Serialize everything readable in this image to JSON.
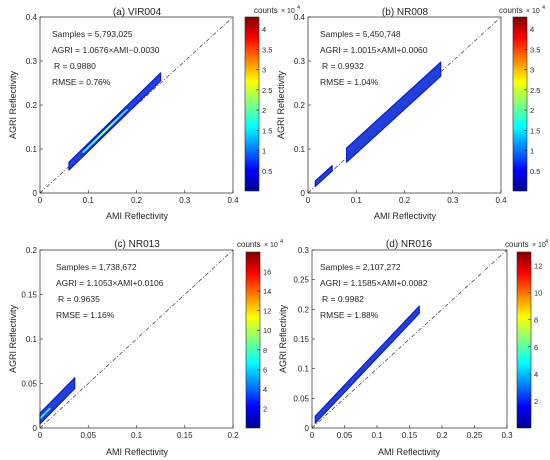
{
  "colorbar_label": "counts",
  "colorbar_exponent": "× 10",
  "colorbar_exponent_power": "4",
  "chart_data": [
    {
      "type": "heatmap",
      "title": "(a)  VIR004",
      "xlabel": "AMI Reflectivity",
      "ylabel": "AGRI Reflectivity",
      "xlim": [
        0,
        0.4
      ],
      "ylim": [
        0,
        0.4
      ],
      "xticks": [
        "0",
        "0.1",
        "0.2",
        "0.3",
        "0.4"
      ],
      "yticks": [
        "0",
        "0.1",
        "0.2",
        "0.3",
        "0.4"
      ],
      "stats": [
        "Samples = 5,793,025",
        "AGRI = 1.0676×AMI−0.0030",
        "R = 0.9880",
        "RMSE = 0.76%"
      ],
      "fit": {
        "slope": 1.0676,
        "intercept": -0.003
      },
      "colorbar": {
        "min": 0,
        "max": 4.3,
        "ticks": [
          "0.5",
          "1",
          "1.5",
          "2",
          "2.5",
          "3",
          "3.5",
          "4"
        ],
        "tick_values": [
          0.5,
          1,
          1.5,
          2,
          2.5,
          3,
          3.5,
          4
        ]
      },
      "segments": [
        {
          "x": [
            0.06,
            0.25
          ],
          "half_width": 0.009
        },
        {
          "x": [
            0.09,
            0.18
          ],
          "half_width": 0.005
        }
      ]
    },
    {
      "type": "heatmap",
      "title": "(b)  NR008",
      "xlabel": "AMI Reflectivity",
      "ylabel": "AGRI Reflectivity",
      "xlim": [
        0,
        0.4
      ],
      "ylim": [
        0,
        0.4
      ],
      "xticks": [
        "0",
        "0.1",
        "0.2",
        "0.3",
        "0.4"
      ],
      "yticks": [
        "0",
        "0.1",
        "0.2",
        "0.3",
        "0.4"
      ],
      "stats": [
        "Samples = 5,450,748",
        "AGRI = 1.0015×AMI+0.0060",
        "R = 0.9932",
        "RMSE = 1.04%"
      ],
      "fit": {
        "slope": 1.0015,
        "intercept": 0.006
      },
      "colorbar": {
        "min": 0,
        "max": 4.3,
        "ticks": [
          "0.5",
          "1",
          "1.5",
          "2",
          "2.5",
          "3",
          "3.5",
          "4"
        ],
        "tick_values": [
          0.5,
          1,
          1.5,
          2,
          2.5,
          3,
          3.5,
          4
        ]
      },
      "segments": [
        {
          "x": [
            0.015,
            0.05
          ],
          "half_width": 0.006
        },
        {
          "x": [
            0.08,
            0.275
          ],
          "half_width": 0.016
        }
      ]
    },
    {
      "type": "heatmap",
      "title": "(c)  NR013",
      "xlabel": "AMI Reflectivity",
      "ylabel": "AGRI Reflectivity",
      "xlim": [
        0,
        0.2
      ],
      "ylim": [
        0,
        0.2
      ],
      "xticks": [
        "0",
        "0.05",
        "0.1",
        "0.15",
        "0.2"
      ],
      "yticks": [
        "0",
        "0.05",
        "0.1",
        "0.15",
        "0.2"
      ],
      "stats": [
        "Samples = 1,738,672",
        "AGRI = 1.1053×AMI+0.0106",
        "R = 0.9635",
        "RMSE = 1.16%"
      ],
      "fit": {
        "slope": 1.1053,
        "intercept": 0.0106
      },
      "colorbar": {
        "min": 0,
        "max": 18,
        "ticks": [
          "2",
          "4",
          "6",
          "8",
          "10",
          "12",
          "14",
          "16"
        ],
        "tick_values": [
          2,
          4,
          6,
          8,
          10,
          12,
          14,
          16
        ]
      },
      "segments": [
        {
          "x": [
            0.0,
            0.036
          ],
          "half_width": 0.006
        }
      ]
    },
    {
      "type": "heatmap",
      "title": "(d)  NR016",
      "xlabel": "AMI Reflectivity",
      "ylabel": "AGRI Reflectivity",
      "xlim": [
        0,
        0.3
      ],
      "ylim": [
        0,
        0.3
      ],
      "xticks": [
        "0",
        "0.05",
        "0.1",
        "0.15",
        "0.2",
        "0.25",
        "0.3"
      ],
      "yticks": [
        "0",
        "0.05",
        "0.1",
        "0.15",
        "0.2",
        "0.25",
        "0.3"
      ],
      "stats": [
        "Samples = 2,107,272",
        "AGRI = 1.1585×AMI+0.0082",
        "R = 0.9982",
        "RMSE = 1.88%"
      ],
      "fit": {
        "slope": 1.1585,
        "intercept": 0.0082
      },
      "colorbar": {
        "min": 0,
        "max": 13,
        "ticks": [
          "2",
          "4",
          "6",
          "8",
          "10",
          "12"
        ],
        "tick_values": [
          2,
          4,
          6,
          8,
          10,
          12
        ]
      },
      "segments": [
        {
          "x": [
            0.005,
            0.165
          ],
          "half_width": 0.006
        }
      ]
    }
  ]
}
